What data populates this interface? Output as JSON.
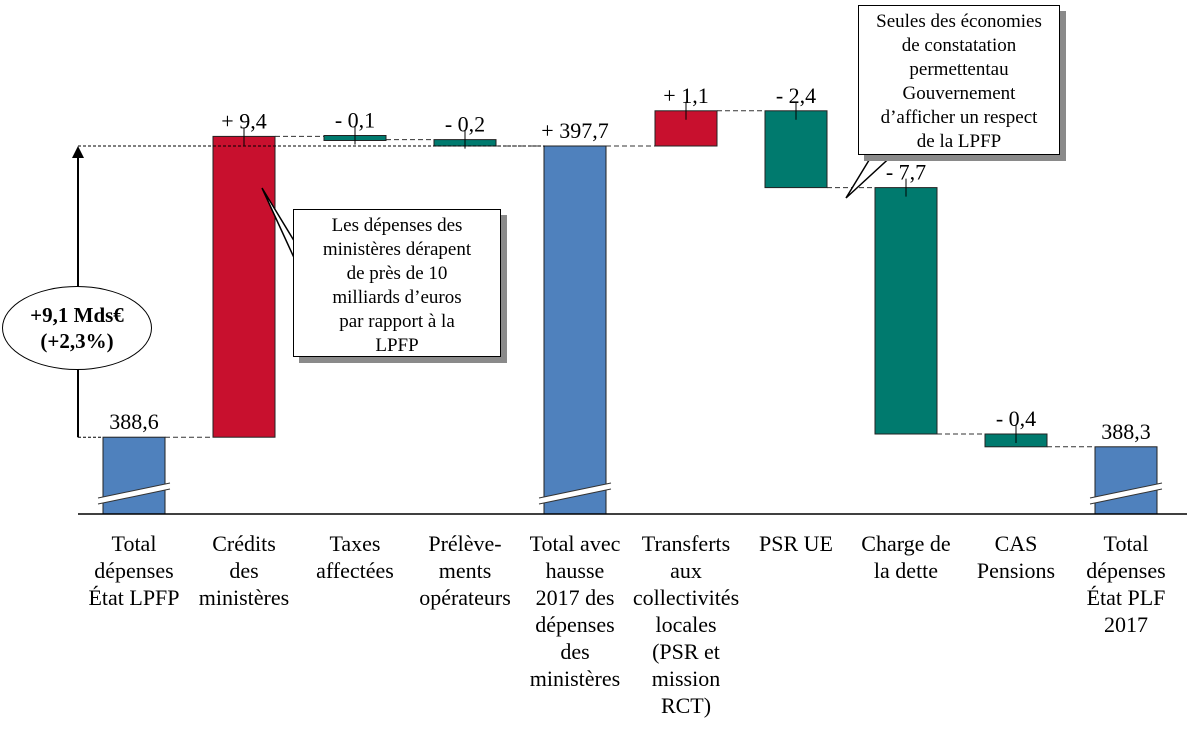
{
  "chart_data": {
    "type": "waterfall",
    "title": "",
    "categories": [
      "Total\ndépenses\nÉtat LPFP",
      "Crédits\ndes\nministères",
      "Taxes\naffectées",
      "Prélève-\nments\nopérateurs",
      "Total avec\nhausse\n2017 des\ndépenses\ndes\nministères",
      "Transferts\naux\ncollectivités\nlocales\n(PSR et\nmission\nRCT)",
      "PSR UE",
      "Charge de\nla dette",
      "CAS\nPensions",
      "Total\ndépenses\nÉtat PLF\n2017"
    ],
    "values": [
      388.6,
      9.4,
      -0.1,
      -0.2,
      397.7,
      1.1,
      -2.4,
      -7.7,
      -0.4,
      388.3
    ],
    "kinds": [
      "total",
      "delta",
      "delta",
      "delta",
      "total",
      "delta",
      "delta",
      "delta",
      "delta",
      "total"
    ],
    "value_labels": [
      "388,6",
      "+ 9,4",
      "- 0,1",
      "- 0,2",
      "+ 397,7",
      "+ 1,1",
      "- 2,4",
      "- 7,7",
      "- 0,4",
      "388,3"
    ],
    "colors": {
      "total": "#4f81bd",
      "increase": "#c8102e",
      "decrease": "#007a6e"
    },
    "axis_break": true,
    "ylim": [
      386.2,
      398.2
    ]
  },
  "annotations": {
    "ministries_callout": "Les dépenses des\nministères dérapent\nde près de 10\nmilliards d’euros\npar rapport à la\nLPFP",
    "savings_callout": "Seules des économies\nde constatation\npermettentau\nGouvernement\nd’afficher un respect\nde la LPFP",
    "growth_label": "+9,1 Mds€\n(+2,3%)"
  }
}
